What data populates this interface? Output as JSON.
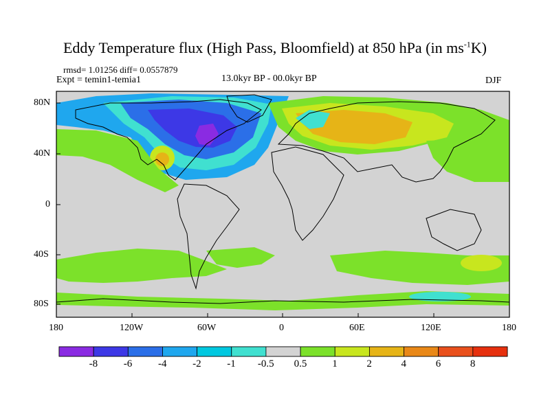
{
  "header": {
    "title_main": "Eddy Temperature flux (High Pass, Bloomfield) at 850 hPa (in ms",
    "title_sup": "-1",
    "title_end": "K)",
    "stats": "rmsd= 1.01256 diff= 0.0557879",
    "experiment": "Expt = temin1-temia1",
    "period": "13.0kyr BP - 00.0kyr BP",
    "season": "DJF"
  },
  "map": {
    "lat_labels": [
      "80N",
      "40N",
      "0",
      "40S",
      "80S"
    ],
    "lon_labels": [
      "180",
      "120W",
      "60W",
      "0",
      "60E",
      "120E",
      "180"
    ],
    "missing_color": "#d3d3d3"
  },
  "legend": {
    "labels": [
      "-8",
      "-6",
      "-4",
      "-2",
      "-1",
      "-0.5",
      "0.5",
      "1",
      "2",
      "4",
      "6",
      "8"
    ],
    "colors": [
      "#8a2be2",
      "#3d38e6",
      "#2b6fe8",
      "#1fa7ee",
      "#00c8e0",
      "#40e0d0",
      "#d3d3d3",
      "#7ce12a",
      "#c8e61e",
      "#e6b417",
      "#e98818",
      "#e9501c",
      "#e6300e"
    ]
  }
}
